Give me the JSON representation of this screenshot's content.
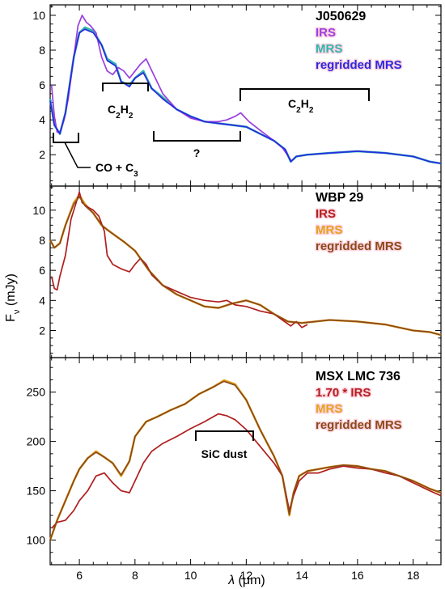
{
  "chart_data": [
    {
      "type": "line",
      "title": "J050629",
      "xlim": [
        4.95,
        19.0
      ],
      "ylim": [
        0.2,
        10.6
      ],
      "yticks": [
        2,
        4,
        6,
        8,
        10
      ],
      "series": [
        {
          "name": "IRS",
          "color": "#9a3fe0",
          "x": [
            5.0,
            5.1,
            5.2,
            5.3,
            5.45,
            5.6,
            5.8,
            5.95,
            6.1,
            6.25,
            6.4,
            6.6,
            6.8,
            7.0,
            7.2,
            7.4,
            7.6,
            7.8,
            8.0,
            8.2,
            8.4,
            8.7,
            9.0,
            9.5,
            10.0,
            10.5,
            11.0,
            11.3,
            11.6,
            11.8,
            12.1,
            12.5,
            13.0,
            13.3,
            13.6
          ],
          "y": [
            6.0,
            4.2,
            3.3,
            3.3,
            4.0,
            5.2,
            7.6,
            9.4,
            10.0,
            9.6,
            9.4,
            9.0,
            7.6,
            6.8,
            6.6,
            7.0,
            6.8,
            6.4,
            6.8,
            7.2,
            7.5,
            6.5,
            5.5,
            4.6,
            4.1,
            3.9,
            3.9,
            4.0,
            4.2,
            4.4,
            3.9,
            3.4,
            2.8,
            2.4,
            1.7
          ]
        },
        {
          "name": "MRS",
          "color": "#2fb5b0",
          "x": [
            4.95,
            5.1,
            5.3,
            5.5,
            5.8,
            6.0,
            6.2,
            6.5,
            6.8,
            7.0,
            7.3,
            7.5,
            7.8,
            8.0,
            8.3,
            8.6,
            9.0,
            9.5,
            10.0,
            10.5,
            11.0,
            11.5,
            12.0,
            12.5,
            13.0,
            13.4,
            13.6,
            13.8,
            14.2,
            15.0,
            16.0,
            17.0,
            18.0,
            18.6,
            19.0
          ],
          "y": [
            5.2,
            3.7,
            3.2,
            4.4,
            7.6,
            9.0,
            9.3,
            9.1,
            8.3,
            7.5,
            7.2,
            6.2,
            6.0,
            6.4,
            6.8,
            5.8,
            5.3,
            4.6,
            4.2,
            3.9,
            3.8,
            3.7,
            3.6,
            3.2,
            2.8,
            2.3,
            1.6,
            1.9,
            2.0,
            2.1,
            2.2,
            2.1,
            1.9,
            1.6,
            1.5
          ]
        },
        {
          "name": "regridded MRS",
          "color": "#2a2ae0",
          "x": [
            4.95,
            5.1,
            5.3,
            5.5,
            5.8,
            6.0,
            6.2,
            6.5,
            6.8,
            7.0,
            7.3,
            7.5,
            7.8,
            8.0,
            8.3,
            8.6,
            9.0,
            9.5,
            10.0,
            10.5,
            11.0,
            11.5,
            12.0,
            12.5,
            13.0,
            13.4,
            13.6,
            13.8,
            14.2,
            15.0,
            16.0,
            17.0,
            18.0,
            18.6,
            19.0
          ],
          "y": [
            5.1,
            3.7,
            3.2,
            4.4,
            7.6,
            9.0,
            9.2,
            9.0,
            8.3,
            7.4,
            7.1,
            6.2,
            5.9,
            6.4,
            6.7,
            5.8,
            5.2,
            4.6,
            4.2,
            3.9,
            3.8,
            3.7,
            3.6,
            3.2,
            2.8,
            2.3,
            1.6,
            1.9,
            2.0,
            2.1,
            2.2,
            2.1,
            1.9,
            1.6,
            1.5
          ]
        }
      ],
      "annotations": [
        "C2H2",
        "C2H2",
        "?",
        "CO + C3"
      ]
    },
    {
      "type": "line",
      "title": "WBP 29",
      "xlim": [
        4.95,
        19.0
      ],
      "ylim": [
        0.2,
        11.6
      ],
      "yticks": [
        2,
        4,
        6,
        8,
        10
      ],
      "series": [
        {
          "name": "IRS",
          "color": "#b01e1e",
          "x": [
            5.0,
            5.1,
            5.2,
            5.3,
            5.5,
            5.7,
            5.9,
            6.0,
            6.1,
            6.3,
            6.5,
            6.7,
            6.9,
            7.0,
            7.2,
            7.5,
            7.8,
            8.0,
            8.2,
            8.4,
            8.6,
            9.0,
            9.5,
            10.0,
            10.5,
            11.0,
            11.3,
            11.6,
            12.0,
            12.5,
            13.0,
            13.3,
            13.6,
            13.8,
            14.0,
            14.2
          ],
          "y": [
            5.6,
            4.8,
            4.7,
            5.6,
            7.0,
            9.4,
            10.6,
            11.2,
            10.5,
            10.2,
            10.0,
            9.6,
            8.6,
            7.0,
            6.4,
            6.1,
            5.9,
            6.4,
            6.8,
            6.4,
            5.7,
            5.0,
            4.6,
            4.2,
            4.0,
            3.9,
            4.0,
            3.7,
            3.6,
            3.3,
            3.1,
            2.7,
            2.3,
            2.6,
            2.2,
            2.4
          ]
        },
        {
          "name": "MRS",
          "color": "#e5a21f",
          "x": [
            4.95,
            5.1,
            5.3,
            5.5,
            5.8,
            6.0,
            6.2,
            6.5,
            6.8,
            7.0,
            7.3,
            7.6,
            8.0,
            8.5,
            9.0,
            9.5,
            10.0,
            10.5,
            11.0,
            11.5,
            12.0,
            12.5,
            13.0,
            13.5,
            14.0,
            15.0,
            16.0,
            17.0,
            18.0,
            18.6,
            19.0
          ],
          "y": [
            8.0,
            7.5,
            7.8,
            9.0,
            10.5,
            11.0,
            10.4,
            9.8,
            9.0,
            8.7,
            8.3,
            7.9,
            7.3,
            6.0,
            5.0,
            4.4,
            4.0,
            3.6,
            3.5,
            3.8,
            4.0,
            3.7,
            3.1,
            2.6,
            2.5,
            2.7,
            2.6,
            2.4,
            2.0,
            1.9,
            1.7
          ]
        },
        {
          "name": "regridded MRS",
          "color": "#8a4a1a",
          "x": [
            4.95,
            5.1,
            5.3,
            5.5,
            5.8,
            6.0,
            6.2,
            6.5,
            6.8,
            7.0,
            7.3,
            7.6,
            8.0,
            8.5,
            9.0,
            9.5,
            10.0,
            10.5,
            11.0,
            11.5,
            12.0,
            12.5,
            13.0,
            13.5,
            14.0,
            15.0,
            16.0,
            17.0,
            18.0,
            18.6,
            19.0
          ],
          "y": [
            8.0,
            7.5,
            7.8,
            9.0,
            10.4,
            10.9,
            10.3,
            9.8,
            9.0,
            8.7,
            8.3,
            7.9,
            7.3,
            6.0,
            5.0,
            4.4,
            4.0,
            3.6,
            3.5,
            3.8,
            4.0,
            3.7,
            3.1,
            2.6,
            2.5,
            2.7,
            2.6,
            2.4,
            2.0,
            1.9,
            1.7
          ]
        }
      ]
    },
    {
      "type": "line",
      "title": "MSX LMC 736",
      "xlim": [
        4.95,
        19.0
      ],
      "ylim": [
        75,
        285
      ],
      "yticks": [
        100,
        150,
        200,
        250
      ],
      "xlabel": "λ (μm)",
      "xticks": [
        6,
        8,
        10,
        12,
        14,
        16,
        18
      ],
      "series": [
        {
          "name": "1.70 * IRS",
          "color": "#b01e1e",
          "x": [
            5.0,
            5.2,
            5.5,
            5.8,
            6.0,
            6.3,
            6.6,
            6.9,
            7.2,
            7.5,
            7.8,
            8.0,
            8.3,
            8.6,
            9.0,
            9.5,
            10.0,
            10.5,
            11.0,
            11.3,
            11.6,
            12.0,
            12.5,
            13.0,
            13.3,
            13.55,
            13.7,
            13.9,
            14.2,
            14.6,
            15.0,
            15.5,
            16.0,
            16.5,
            17.0,
            17.5,
            18.0,
            18.6,
            19.0
          ],
          "y": [
            112,
            118,
            120,
            130,
            140,
            150,
            165,
            168,
            158,
            150,
            148,
            160,
            178,
            190,
            198,
            205,
            213,
            220,
            228,
            226,
            222,
            212,
            195,
            178,
            165,
            130,
            145,
            160,
            168,
            168,
            172,
            175,
            173,
            172,
            168,
            165,
            158,
            150,
            145
          ]
        },
        {
          "name": "MRS",
          "color": "#e5a21f",
          "x": [
            4.95,
            5.2,
            5.5,
            5.8,
            6.0,
            6.3,
            6.6,
            6.9,
            7.2,
            7.5,
            7.8,
            8.0,
            8.4,
            8.8,
            9.3,
            9.8,
            10.3,
            10.8,
            11.2,
            11.6,
            12.0,
            12.5,
            13.0,
            13.3,
            13.55,
            13.7,
            13.9,
            14.2,
            14.6,
            15.0,
            15.5,
            16.0,
            16.5,
            17.0,
            17.5,
            18.0,
            18.6,
            19.0
          ],
          "y": [
            100,
            120,
            140,
            160,
            172,
            183,
            190,
            184,
            178,
            165,
            180,
            205,
            220,
            225,
            232,
            238,
            248,
            255,
            262,
            258,
            242,
            212,
            185,
            165,
            125,
            148,
            165,
            170,
            172,
            174,
            176,
            175,
            172,
            170,
            165,
            160,
            152,
            148
          ]
        },
        {
          "name": "regridded MRS",
          "color": "#8a4a1a",
          "x": [
            4.95,
            5.2,
            5.5,
            5.8,
            6.0,
            6.3,
            6.6,
            6.9,
            7.2,
            7.5,
            7.8,
            8.0,
            8.4,
            8.8,
            9.3,
            9.8,
            10.3,
            10.8,
            11.2,
            11.6,
            12.0,
            12.5,
            13.0,
            13.3,
            13.55,
            13.7,
            13.9,
            14.2,
            14.6,
            15.0,
            15.5,
            16.0,
            16.5,
            17.0,
            17.5,
            18.0,
            18.6,
            19.0
          ],
          "y": [
            100,
            120,
            140,
            160,
            172,
            183,
            189,
            184,
            178,
            166,
            180,
            205,
            220,
            225,
            232,
            238,
            248,
            255,
            261,
            257,
            242,
            212,
            185,
            165,
            126,
            148,
            165,
            170,
            172,
            174,
            176,
            175,
            172,
            170,
            165,
            160,
            152,
            148
          ]
        }
      ],
      "annotations": [
        "SiC dust"
      ]
    }
  ],
  "shared": {
    "ylabel_main": "F",
    "ylabel_sub": "ν",
    "ylabel_unit": " (mJy)",
    "xlabel_lambda": "λ",
    "xlabel_unit": " (μm)",
    "annot_c2h2_main": "C",
    "annot_c2h2_sub1": "2",
    "annot_c2h2_h": "H",
    "annot_c2h2_sub2": "2",
    "annot_q": "?",
    "annot_co_main": "CO + C",
    "annot_co_sub": "3",
    "annot_sic": "SiC dust"
  },
  "colors": {
    "axis": "#000000",
    "irs_purple": "#9a3fe0",
    "mrs_teal": "#2fb5b0",
    "regrid_blue": "#2a2ae0",
    "irs_red": "#b01e1e",
    "mrs_orange": "#e5a21f",
    "regrid_brown": "#8a4a1a"
  }
}
